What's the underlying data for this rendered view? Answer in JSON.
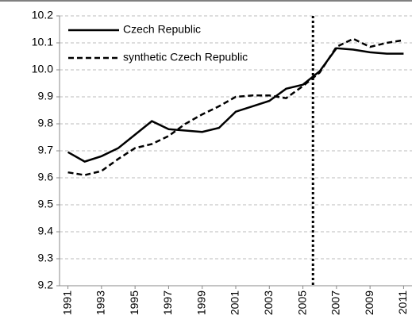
{
  "chart_data": {
    "type": "line",
    "x": [
      1991,
      1992,
      1993,
      1994,
      1995,
      1996,
      1997,
      1998,
      1999,
      2000,
      2001,
      2002,
      2003,
      2004,
      2005,
      2006,
      2007,
      2008,
      2009,
      2010,
      2011
    ],
    "series": [
      {
        "name": "Czech Republic",
        "color": "#000000",
        "dash": "solid",
        "values": [
          9.695,
          9.66,
          9.68,
          9.71,
          9.76,
          9.81,
          9.78,
          9.775,
          9.77,
          9.785,
          9.845,
          9.865,
          9.885,
          9.93,
          9.945,
          9.995,
          10.08,
          10.075,
          10.065,
          10.06,
          10.06
        ]
      },
      {
        "name": "synthetic Czech Republic",
        "color": "#000000",
        "dash": "dashed",
        "values": [
          9.62,
          9.61,
          9.625,
          9.67,
          9.71,
          9.725,
          9.755,
          9.8,
          9.835,
          9.865,
          9.9,
          9.905,
          9.905,
          9.895,
          9.94,
          9.99,
          10.085,
          10.115,
          10.085,
          10.1,
          10.11
        ]
      }
    ],
    "reference_line_x": 2005.6,
    "xlim": [
      1990.5,
      2011.5
    ],
    "xticks": [
      1991,
      1993,
      1995,
      1997,
      1999,
      2001,
      2003,
      2005,
      2007,
      2009,
      2011
    ],
    "ylim": [
      9.2,
      10.2
    ],
    "yticks": [
      9.2,
      9.3,
      9.4,
      9.5,
      9.6,
      9.7,
      9.8,
      9.9,
      {
        "value": 10,
        "label": "10.0"
      },
      10.1,
      10.2
    ],
    "grid": true,
    "legend": "upper-left"
  }
}
